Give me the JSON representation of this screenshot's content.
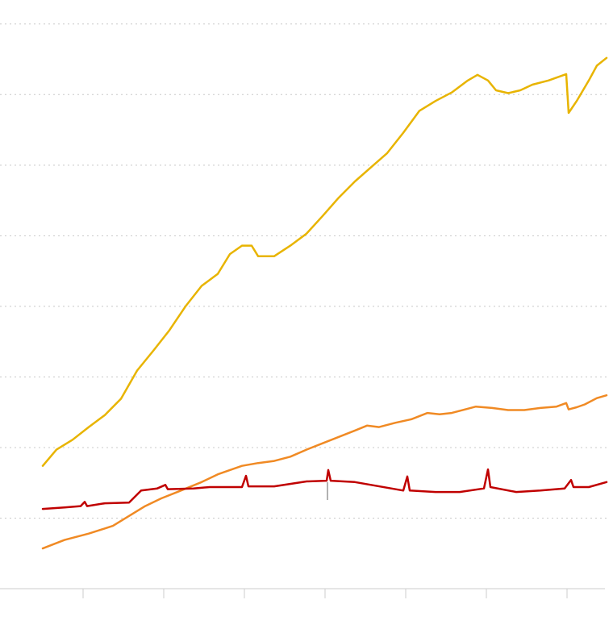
{
  "chart_data": {
    "type": "line",
    "xlim": [
      0,
      7.5
    ],
    "ylim": [
      0,
      8.34
    ],
    "xticks": [
      1,
      2,
      3,
      4,
      5,
      6,
      7
    ],
    "yticks": [
      1,
      2,
      3,
      4,
      5,
      6,
      7,
      8
    ],
    "grid": true,
    "series": [
      {
        "color": "#e8b400",
        "x": [
          0.5,
          0.67,
          0.87,
          1.07,
          1.27,
          1.47,
          1.67,
          1.87,
          2.07,
          2.27,
          2.47,
          2.67,
          2.82,
          2.97,
          3.09,
          3.17,
          3.37,
          3.57,
          3.77,
          3.97,
          4.17,
          4.37,
          4.57,
          4.77,
          4.97,
          5.17,
          5.37,
          5.57,
          5.77,
          5.89,
          6.02,
          6.12,
          6.27,
          6.42,
          6.57,
          6.77,
          6.99,
          7.02,
          7.12,
          7.27,
          7.37,
          7.49
        ],
        "values": [
          1.74,
          1.97,
          2.11,
          2.29,
          2.46,
          2.69,
          3.09,
          3.37,
          3.66,
          4.0,
          4.29,
          4.46,
          4.74,
          4.86,
          4.86,
          4.71,
          4.71,
          4.86,
          5.03,
          5.28,
          5.54,
          5.77,
          5.97,
          6.17,
          6.46,
          6.77,
          6.91,
          7.03,
          7.2,
          7.28,
          7.2,
          7.06,
          7.02,
          7.06,
          7.14,
          7.2,
          7.29,
          6.74,
          6.91,
          7.2,
          7.41,
          7.52
        ]
      },
      {
        "color": "#f08a24",
        "x": [
          0.5,
          0.77,
          1.07,
          1.37,
          1.57,
          1.77,
          1.97,
          2.17,
          2.47,
          2.67,
          2.97,
          3.17,
          3.37,
          3.57,
          3.77,
          3.97,
          4.17,
          4.37,
          4.52,
          4.67,
          4.87,
          5.07,
          5.27,
          5.42,
          5.57,
          5.87,
          6.07,
          6.27,
          6.47,
          6.67,
          6.87,
          6.99,
          7.02,
          7.12,
          7.22,
          7.37,
          7.49
        ],
        "values": [
          0.57,
          0.69,
          0.78,
          0.89,
          1.03,
          1.17,
          1.28,
          1.37,
          1.51,
          1.62,
          1.74,
          1.78,
          1.81,
          1.87,
          1.97,
          2.06,
          2.15,
          2.24,
          2.31,
          2.29,
          2.35,
          2.4,
          2.49,
          2.47,
          2.49,
          2.58,
          2.56,
          2.53,
          2.53,
          2.56,
          2.58,
          2.63,
          2.54,
          2.57,
          2.61,
          2.7,
          2.74
        ]
      },
      {
        "color": "#c00000",
        "x": [
          0.5,
          0.77,
          0.97,
          1.02,
          1.05,
          1.27,
          1.57,
          1.72,
          1.92,
          2.02,
          2.05,
          2.37,
          2.57,
          2.97,
          3.02,
          3.05,
          3.37,
          3.77,
          4.02,
          4.04,
          4.07,
          4.37,
          4.77,
          4.97,
          5.02,
          5.05,
          5.37,
          5.67,
          5.97,
          6.02,
          6.05,
          6.37,
          6.67,
          6.97,
          7.05,
          7.08,
          7.27,
          7.49
        ],
        "values": [
          1.13,
          1.15,
          1.17,
          1.23,
          1.17,
          1.21,
          1.22,
          1.39,
          1.42,
          1.47,
          1.41,
          1.42,
          1.44,
          1.44,
          1.6,
          1.45,
          1.45,
          1.52,
          1.53,
          1.68,
          1.53,
          1.51,
          1.43,
          1.39,
          1.59,
          1.39,
          1.37,
          1.37,
          1.42,
          1.69,
          1.44,
          1.37,
          1.39,
          1.42,
          1.54,
          1.44,
          1.44,
          1.51
        ]
      }
    ]
  }
}
